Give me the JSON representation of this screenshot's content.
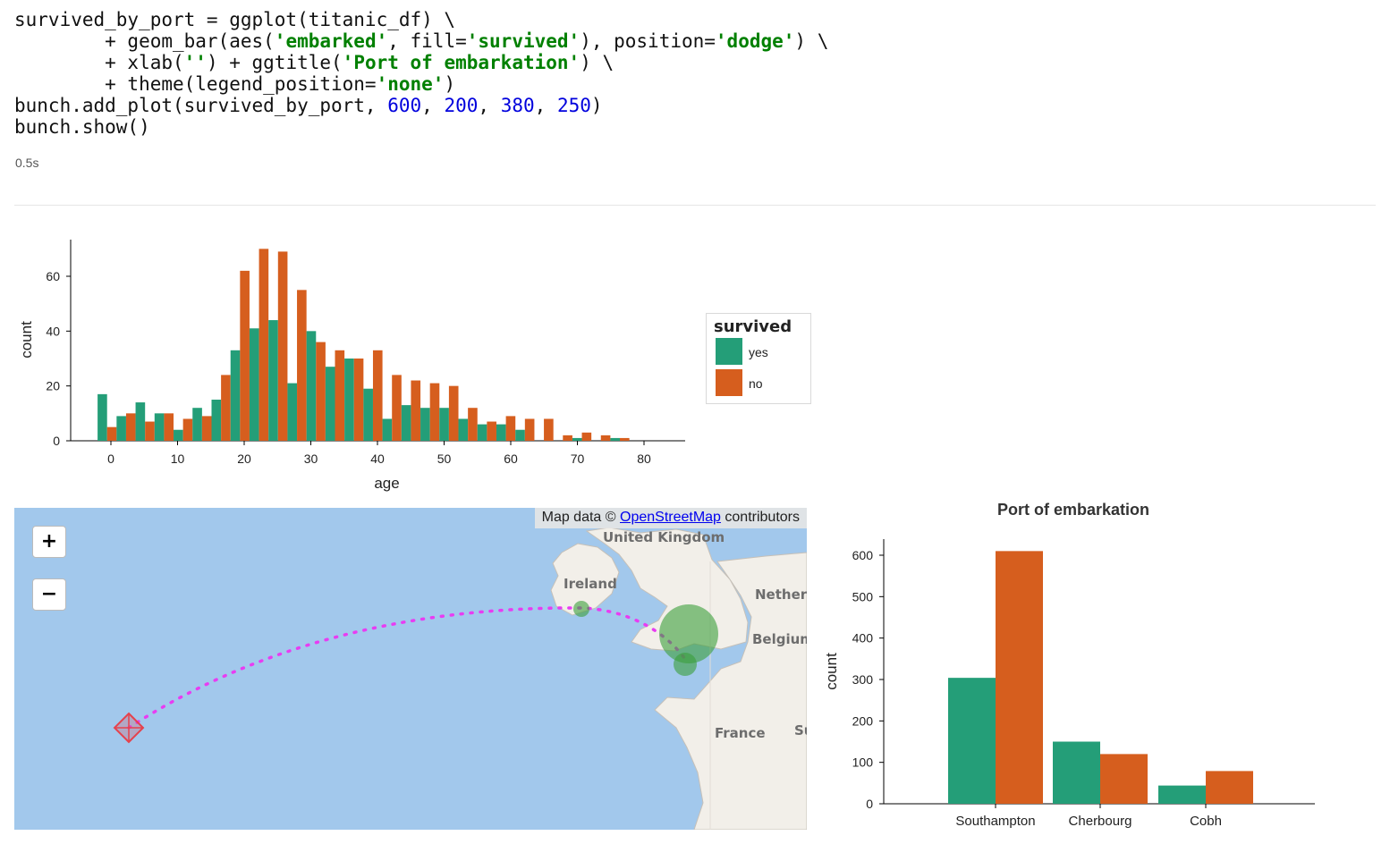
{
  "notebook": {
    "code_tokens": [
      [
        {
          "t": "survived_by_port = ggplot(titanic_df) \\",
          "c": ""
        }
      ],
      [
        {
          "t": "        + geom_bar(aes(",
          "c": ""
        },
        {
          "t": "'embarked'",
          "c": "kw"
        },
        {
          "t": ", fill=",
          "c": ""
        },
        {
          "t": "'survived'",
          "c": "kw"
        },
        {
          "t": "), position=",
          "c": ""
        },
        {
          "t": "'dodge'",
          "c": "kw"
        },
        {
          "t": ") \\",
          "c": ""
        }
      ],
      [
        {
          "t": "        + xlab(",
          "c": ""
        },
        {
          "t": "''",
          "c": "kw"
        },
        {
          "t": ") + ggtitle(",
          "c": ""
        },
        {
          "t": "'Port of embarkation'",
          "c": "kw"
        },
        {
          "t": ") \\",
          "c": ""
        }
      ],
      [
        {
          "t": "        + theme(legend_position=",
          "c": ""
        },
        {
          "t": "'none'",
          "c": "kw"
        },
        {
          "t": ")",
          "c": ""
        }
      ],
      [
        {
          "t": "bunch.add_plot(survived_by_port, ",
          "c": ""
        },
        {
          "t": "600",
          "c": "num"
        },
        {
          "t": ", ",
          "c": ""
        },
        {
          "t": "200",
          "c": "num"
        },
        {
          "t": ", ",
          "c": ""
        },
        {
          "t": "380",
          "c": "num"
        },
        {
          "t": ", ",
          "c": ""
        },
        {
          "t": "250",
          "c": "num"
        },
        {
          "t": ")",
          "c": ""
        }
      ],
      [
        {
          "t": "bunch.show()",
          "c": ""
        }
      ]
    ],
    "execution_time": "0.5s"
  },
  "colors": {
    "yes": "#249e78",
    "no": "#d65e1e",
    "ocean": "#a2c8ec",
    "land": "#f2efe9",
    "route": "#e83cf2",
    "marker": "#e5424d"
  },
  "legend": {
    "title": "survived",
    "items": [
      {
        "label": "yes",
        "color": "#249e78"
      },
      {
        "label": "no",
        "color": "#d65e1e"
      }
    ]
  },
  "map": {
    "attribution_prefix": "Map data © ",
    "attribution_link": "OpenStreetMap",
    "attribution_suffix": " contributors",
    "zoom_in": "+",
    "zoom_out": "−",
    "labels": {
      "uk": "United Kingdom",
      "ireland": "Ireland",
      "netherlands": "Netherl",
      "belgium": "Belgium",
      "france": "France",
      "su": "Su"
    }
  },
  "chart_data": [
    {
      "type": "bar",
      "title": "",
      "xlabel": "age",
      "ylabel": "count",
      "xlim": [
        -6,
        86
      ],
      "ylim": [
        0,
        73
      ],
      "x_ticks": [
        0,
        10,
        20,
        30,
        40,
        50,
        60,
        70,
        80
      ],
      "y_ticks": [
        0,
        20,
        40,
        60
      ],
      "bin_width": 2.85,
      "bin_start": -2,
      "series": [
        {
          "name": "yes",
          "values": [
            17,
            9,
            14,
            10,
            4,
            12,
            15,
            33,
            41,
            44,
            21,
            40,
            27,
            30,
            19,
            8,
            13,
            12,
            12,
            8,
            6,
            6,
            4,
            0,
            0,
            1,
            0,
            1
          ]
        },
        {
          "name": "no",
          "values": [
            5,
            10,
            7,
            10,
            8,
            9,
            24,
            62,
            70,
            69,
            55,
            36,
            33,
            30,
            33,
            24,
            22,
            21,
            20,
            12,
            7,
            9,
            8,
            8,
            2,
            3,
            2,
            1
          ]
        }
      ]
    },
    {
      "type": "bar",
      "title": "Port of embarkation",
      "xlabel": "",
      "ylabel": "count",
      "categories": [
        "Southampton",
        "Cherbourg",
        "Cobh"
      ],
      "ylim": [
        0,
        640
      ],
      "y_ticks": [
        0,
        100,
        200,
        300,
        400,
        500,
        600
      ],
      "series": [
        {
          "name": "yes",
          "values": [
            304,
            150,
            44
          ]
        },
        {
          "name": "no",
          "values": [
            610,
            120,
            79
          ]
        }
      ]
    }
  ]
}
